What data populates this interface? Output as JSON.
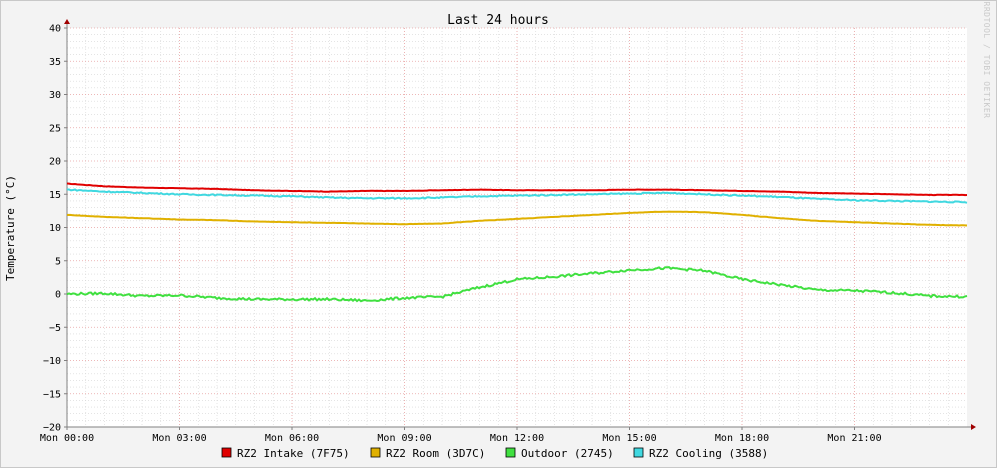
{
  "chart_data": {
    "type": "line",
    "title": "Last 24 hours",
    "ylabel": "Temperature (°C)",
    "xlabel": "",
    "watermark": "RRDTOOL / TOBI OETIKER",
    "ylim": [
      -20,
      40
    ],
    "yticks": [
      40,
      35,
      30,
      25,
      20,
      15,
      10,
      5,
      0,
      -5,
      -10,
      -15,
      -20
    ],
    "xlim_hours": [
      0,
      24
    ],
    "xticks": [
      {
        "hour": 0,
        "label": "Mon 00:00"
      },
      {
        "hour": 3,
        "label": "Mon 03:00"
      },
      {
        "hour": 6,
        "label": "Mon 06:00"
      },
      {
        "hour": 9,
        "label": "Mon 09:00"
      },
      {
        "hour": 12,
        "label": "Mon 12:00"
      },
      {
        "hour": 15,
        "label": "Mon 15:00"
      },
      {
        "hour": 18,
        "label": "Mon 18:00"
      },
      {
        "hour": 21,
        "label": "Mon 21:00"
      }
    ],
    "grid": true,
    "legend_position": "bottom",
    "x": [
      0,
      1,
      2,
      3,
      4,
      5,
      6,
      7,
      8,
      9,
      10,
      11,
      12,
      13,
      14,
      15,
      16,
      17,
      18,
      19,
      20,
      21,
      22,
      23,
      24
    ],
    "series": [
      {
        "name": "RZ2 Intake (7F75)",
        "color": "#e00000",
        "values": [
          16.6,
          16.2,
          16.0,
          15.9,
          15.8,
          15.6,
          15.5,
          15.4,
          15.5,
          15.5,
          15.6,
          15.7,
          15.6,
          15.6,
          15.6,
          15.7,
          15.7,
          15.6,
          15.5,
          15.4,
          15.2,
          15.1,
          15.0,
          14.9,
          14.9
        ]
      },
      {
        "name": "RZ2 Room (3D7C)",
        "color": "#e0b000",
        "values": [
          11.9,
          11.6,
          11.4,
          11.2,
          11.1,
          10.9,
          10.8,
          10.7,
          10.6,
          10.5,
          10.6,
          11.0,
          11.3,
          11.6,
          11.9,
          12.2,
          12.4,
          12.3,
          11.9,
          11.4,
          11.0,
          10.8,
          10.6,
          10.4,
          10.3
        ]
      },
      {
        "name": "Outdoor (2745)",
        "color": "#40e040",
        "values": [
          0.0,
          0.1,
          -0.3,
          -0.2,
          -0.6,
          -0.8,
          -0.8,
          -0.8,
          -1.0,
          -0.6,
          -0.4,
          1.0,
          2.2,
          2.6,
          3.1,
          3.6,
          3.9,
          3.5,
          2.2,
          1.4,
          0.6,
          0.5,
          0.2,
          -0.3,
          -0.4
        ]
      },
      {
        "name": "RZ2 Cooling (3588)",
        "color": "#40d8e0",
        "values": [
          15.7,
          15.4,
          15.2,
          15.0,
          14.9,
          14.8,
          14.7,
          14.5,
          14.4,
          14.4,
          14.5,
          14.7,
          14.8,
          14.9,
          15.0,
          15.1,
          15.2,
          15.0,
          14.8,
          14.6,
          14.3,
          14.1,
          14.0,
          13.9,
          13.8
        ]
      }
    ]
  }
}
